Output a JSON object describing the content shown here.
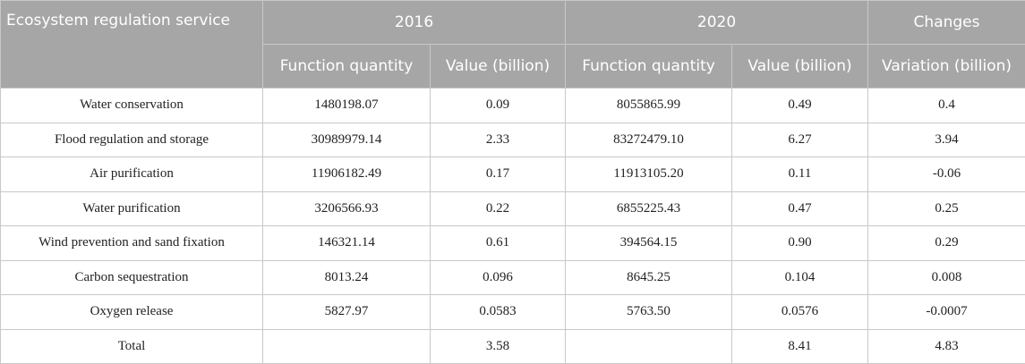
{
  "header": {
    "service_col": "Ecosystem regulation service",
    "groups": [
      "2016",
      "2020",
      "Changes"
    ],
    "subcols": [
      "Function quantity",
      "Value (billion)",
      "Function quantity",
      "Value (billion)",
      "Variation (billion)"
    ]
  },
  "rows": [
    [
      "Water conservation",
      "1480198.07",
      "0.09",
      "8055865.99",
      "0.49",
      "0.4"
    ],
    [
      "Flood regulation and storage",
      "30989979.14",
      "2.33",
      "83272479.10",
      "6.27",
      "3.94"
    ],
    [
      "Air purification",
      "11906182.49",
      "0.17",
      "11913105.20",
      "0.11",
      "-0.06"
    ],
    [
      "Water purification",
      "3206566.93",
      "0.22",
      "6855225.43",
      "0.47",
      "0.25"
    ],
    [
      "Wind prevention and sand fixation",
      "146321.14",
      "0.61",
      "394564.15",
      "0.90",
      "0.29"
    ],
    [
      "Carbon sequestration",
      "8013.24",
      "0.096",
      "8645.25",
      "0.104",
      "0.008"
    ],
    [
      "Oxygen release",
      "5827.97",
      "0.0583",
      "5763.50",
      "0.0576",
      "-0.0007"
    ],
    [
      "Total",
      "",
      "3.58",
      "",
      "8.41",
      "4.83"
    ]
  ]
}
